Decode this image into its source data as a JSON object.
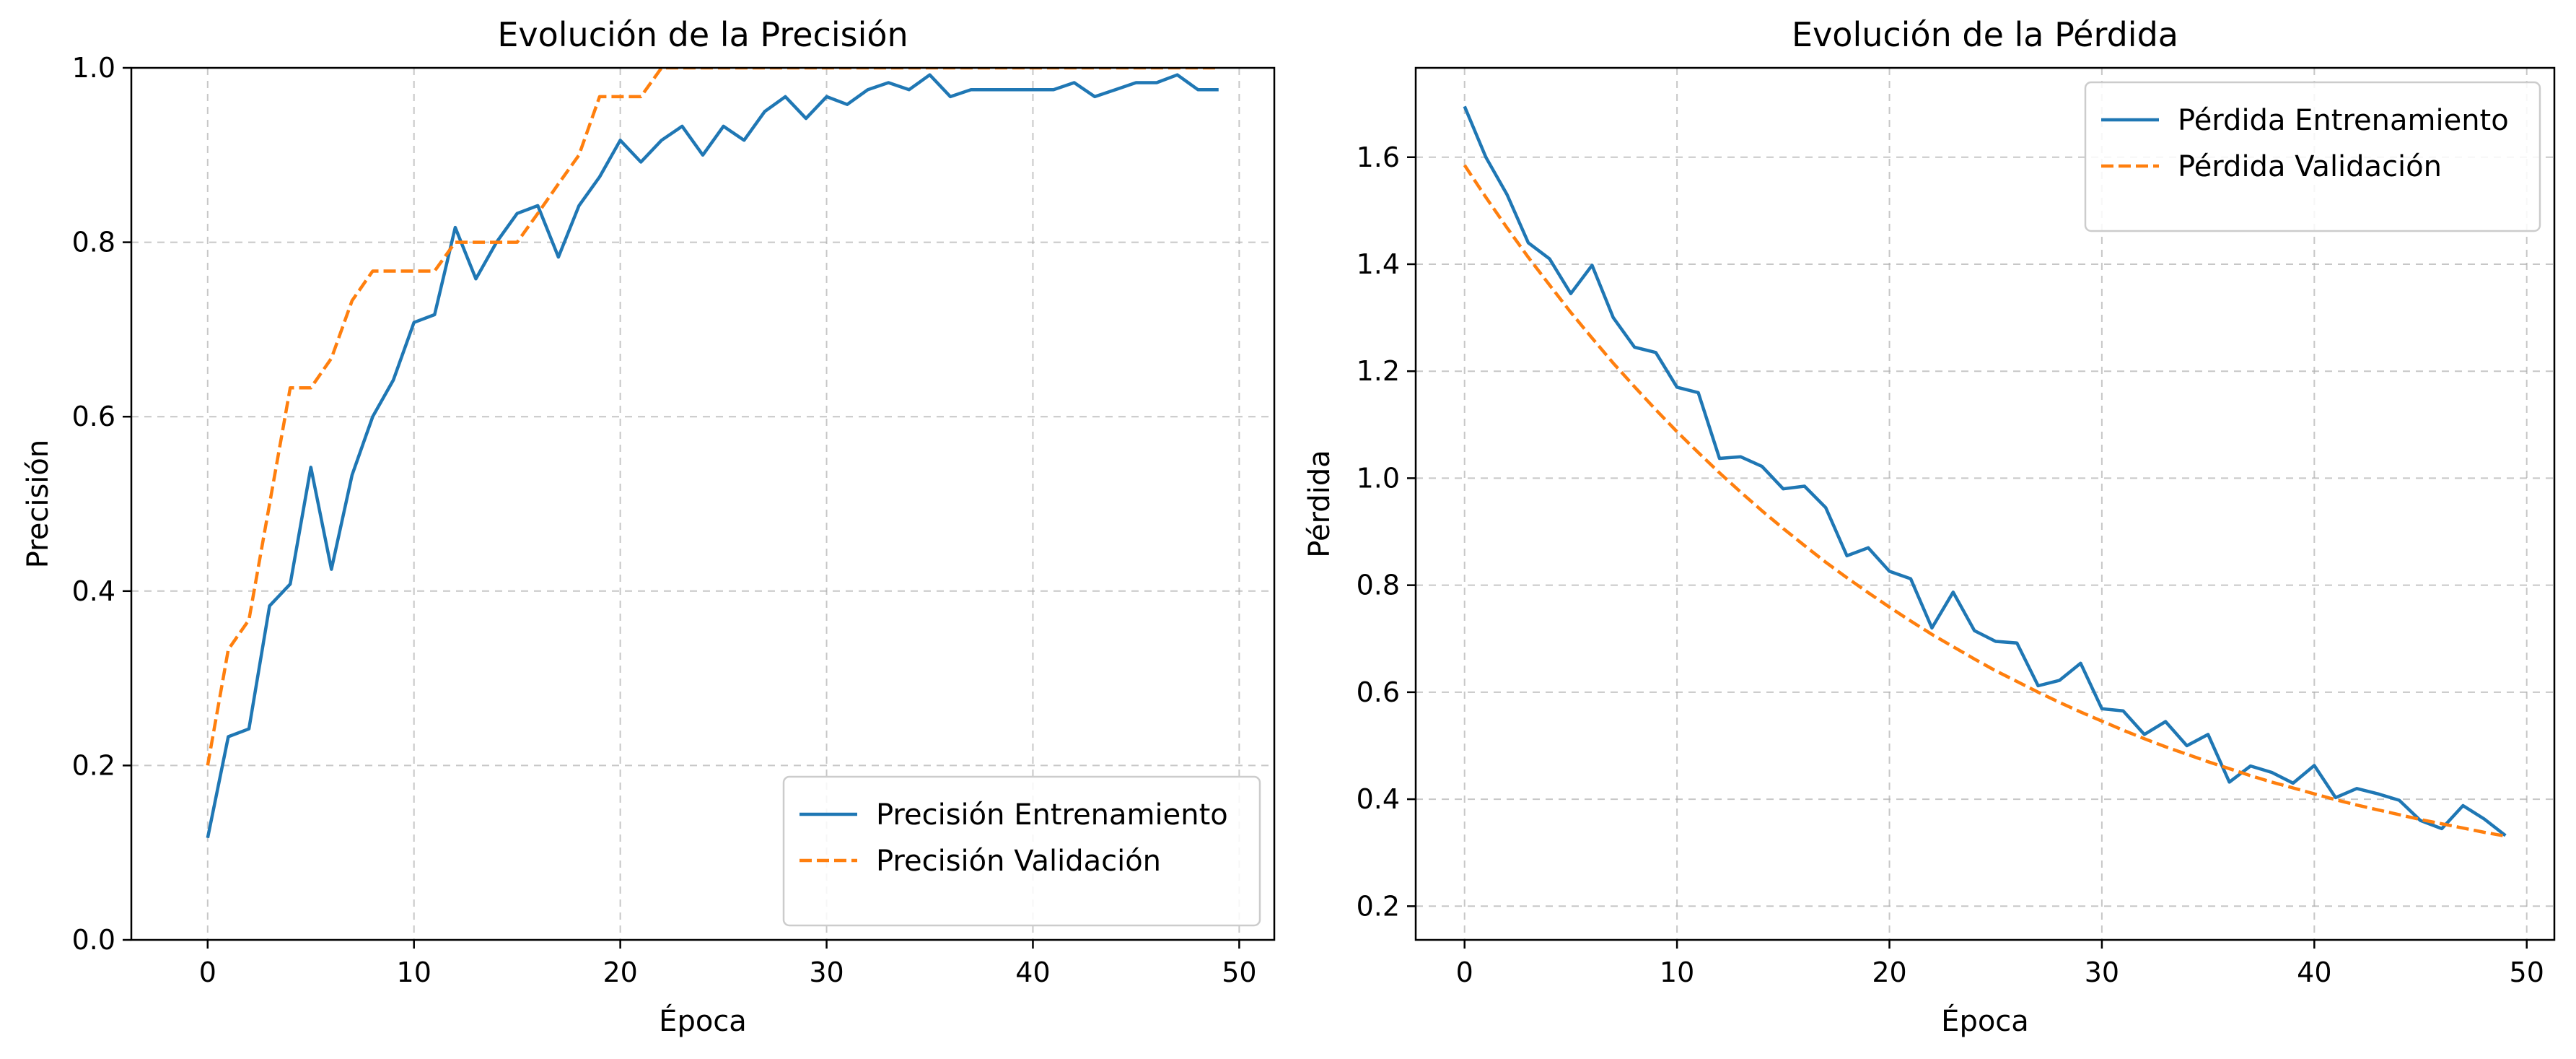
{
  "chart_data": [
    {
      "type": "line",
      "title": "Evolución de la Precisión",
      "xlabel": "Época",
      "ylabel": "Precisión",
      "xlim": [
        -3.7,
        51.7
      ],
      "ylim": [
        0.0,
        1.0
      ],
      "xticks": [
        0,
        10,
        20,
        30,
        40,
        50
      ],
      "xtick_labels": [
        "0",
        "10",
        "20",
        "30",
        "40",
        "50"
      ],
      "yticks": [
        0.0,
        0.2,
        0.4,
        0.6,
        0.8,
        1.0
      ],
      "ytick_labels": [
        "0.0",
        "0.2",
        "0.4",
        "0.6",
        "0.8",
        "1.0"
      ],
      "grid": true,
      "legend_position": "lower right",
      "series": [
        {
          "name": "Precisión Entrenamiento",
          "color": "#1f77b4",
          "style": "solid",
          "x": [
            0,
            1,
            2,
            3,
            4,
            5,
            6,
            7,
            8,
            9,
            10,
            11,
            12,
            13,
            14,
            15,
            16,
            17,
            18,
            19,
            20,
            21,
            22,
            23,
            24,
            25,
            26,
            27,
            28,
            29,
            30,
            31,
            32,
            33,
            34,
            35,
            36,
            37,
            38,
            39,
            40,
            41,
            42,
            43,
            44,
            45,
            46,
            47,
            48,
            49
          ],
          "y": [
            0.117,
            0.233,
            0.242,
            0.383,
            0.408,
            0.542,
            0.425,
            0.533,
            0.6,
            0.642,
            0.708,
            0.717,
            0.817,
            0.758,
            0.8,
            0.833,
            0.842,
            0.783,
            0.842,
            0.875,
            0.917,
            0.892,
            0.917,
            0.933,
            0.9,
            0.933,
            0.917,
            0.95,
            0.967,
            0.942,
            0.967,
            0.958,
            0.975,
            0.983,
            0.975,
            0.992,
            0.967,
            0.975,
            0.975,
            0.975,
            0.975,
            0.975,
            0.983,
            0.967,
            0.975,
            0.983,
            0.983,
            0.992,
            0.975,
            0.975
          ]
        },
        {
          "name": "Precisión Validación",
          "color": "#ff7f0e",
          "style": "dashed",
          "x": [
            0,
            1,
            2,
            3,
            4,
            5,
            6,
            7,
            8,
            9,
            10,
            11,
            12,
            13,
            14,
            15,
            16,
            17,
            18,
            19,
            20,
            21,
            22,
            23,
            24,
            25,
            26,
            27,
            28,
            29,
            30,
            31,
            32,
            33,
            34,
            35,
            36,
            37,
            38,
            39,
            40,
            41,
            42,
            43,
            44,
            45,
            46,
            47,
            48,
            49
          ],
          "y": [
            0.2,
            0.333,
            0.367,
            0.5,
            0.633,
            0.633,
            0.667,
            0.733,
            0.767,
            0.767,
            0.767,
            0.767,
            0.8,
            0.8,
            0.8,
            0.8,
            0.833,
            0.867,
            0.9,
            0.967,
            0.967,
            0.967,
            1.0,
            1.0,
            1.0,
            1.0,
            1.0,
            1.0,
            1.0,
            1.0,
            1.0,
            1.0,
            1.0,
            1.0,
            1.0,
            1.0,
            1.0,
            1.0,
            1.0,
            1.0,
            1.0,
            1.0,
            1.0,
            1.0,
            1.0,
            1.0,
            1.0,
            1.0,
            1.0,
            1.0
          ]
        }
      ]
    },
    {
      "type": "line",
      "title": "Evolución de la Pérdida",
      "xlabel": "Época",
      "ylabel": "Pérdida",
      "xlim": [
        -2.3,
        51.3
      ],
      "ylim": [
        0.137,
        1.767
      ],
      "xticks": [
        0,
        10,
        20,
        30,
        40,
        50
      ],
      "xtick_labels": [
        "0",
        "10",
        "20",
        "30",
        "40",
        "50"
      ],
      "yticks": [
        0.2,
        0.4,
        0.6,
        0.8,
        1.0,
        1.2,
        1.4,
        1.6
      ],
      "ytick_labels": [
        "0.2",
        "0.4",
        "0.6",
        "0.8",
        "1.0",
        "1.2",
        "1.4",
        "1.6"
      ],
      "grid": true,
      "legend_position": "upper right",
      "series": [
        {
          "name": "Pérdida Entrenamiento",
          "color": "#1f77b4",
          "style": "solid",
          "x": [
            0,
            1,
            2,
            3,
            4,
            5,
            6,
            7,
            8,
            9,
            10,
            11,
            12,
            13,
            14,
            15,
            16,
            17,
            18,
            19,
            20,
            21,
            22,
            23,
            24,
            25,
            26,
            27,
            28,
            29,
            30,
            31,
            32,
            33,
            34,
            35,
            36,
            37,
            38,
            39,
            40,
            41,
            42,
            43,
            44,
            45,
            46,
            47,
            48,
            49
          ],
          "y": [
            1.695,
            1.6,
            1.53,
            1.44,
            1.41,
            1.345,
            1.398,
            1.3,
            1.245,
            1.235,
            1.17,
            1.16,
            1.037,
            1.04,
            1.022,
            0.98,
            0.985,
            0.945,
            0.855,
            0.87,
            0.826,
            0.812,
            0.72,
            0.787,
            0.715,
            0.695,
            0.692,
            0.612,
            0.622,
            0.654,
            0.569,
            0.565,
            0.521,
            0.545,
            0.5,
            0.521,
            0.432,
            0.462,
            0.45,
            0.43,
            0.463,
            0.403,
            0.42,
            0.41,
            0.398,
            0.36,
            0.345,
            0.388,
            0.363,
            0.332
          ]
        },
        {
          "name": "Pérdida Validación",
          "color": "#ff7f0e",
          "style": "dashed",
          "x": [
            0,
            1,
            2,
            3,
            4,
            5,
            6,
            7,
            8,
            9,
            10,
            11,
            12,
            13,
            14,
            15,
            16,
            17,
            18,
            19,
            20,
            21,
            22,
            23,
            24,
            25,
            26,
            27,
            28,
            29,
            30,
            31,
            32,
            33,
            34,
            35,
            36,
            37,
            38,
            39,
            40,
            41,
            42,
            43,
            44,
            45,
            46,
            47,
            48,
            49
          ],
          "y": [
            1.585,
            1.525,
            1.468,
            1.413,
            1.361,
            1.31,
            1.262,
            1.215,
            1.171,
            1.128,
            1.087,
            1.048,
            1.01,
            0.974,
            0.939,
            0.906,
            0.874,
            0.843,
            0.814,
            0.786,
            0.759,
            0.733,
            0.708,
            0.685,
            0.662,
            0.64,
            0.62,
            0.6,
            0.581,
            0.563,
            0.546,
            0.529,
            0.513,
            0.498,
            0.484,
            0.47,
            0.457,
            0.444,
            0.432,
            0.421,
            0.41,
            0.399,
            0.389,
            0.38,
            0.371,
            0.362,
            0.354,
            0.346,
            0.338,
            0.331
          ]
        }
      ]
    }
  ]
}
